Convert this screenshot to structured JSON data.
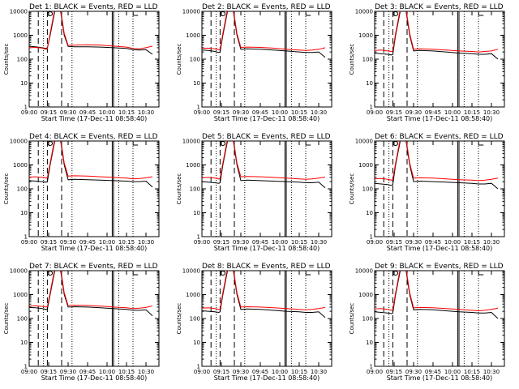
{
  "chart_data": [
    {
      "type": "line",
      "title": "Det 1: BLACK = Events, RED = LLD",
      "xlabel": "Start Time (17-Dec-11 08:58:40)",
      "ylabel": "Counts/sec",
      "x_ticks": [
        "09:00",
        "09:15",
        "09:30",
        "09:45",
        "10:00",
        "10:15",
        "10:30"
      ],
      "y_ticks": [
        "1",
        "10",
        "100",
        "1000",
        "10000"
      ],
      "yscale": "log",
      "ylim": [
        1,
        10000
      ],
      "x": [
        "09:00",
        "09:05",
        "09:10",
        "09:13",
        "09:14",
        "09:16",
        "09:20",
        "09:24",
        "09:27",
        "09:30",
        "09:35",
        "09:45",
        "09:55",
        "10:05",
        "10:15",
        "10:20",
        "10:25",
        "10:30",
        "10:35"
      ],
      "series": [
        {
          "name": "Events",
          "color": "#000000",
          "values": [
            340,
            330,
            300,
            280,
            300,
            900,
            12000,
            12000,
            1000,
            340,
            330,
            330,
            320,
            300,
            280,
            250,
            240,
            250,
            160
          ]
        },
        {
          "name": "LLD",
          "color": "#ff0000",
          "values": [
            300,
            310,
            290,
            260,
            270,
            1100,
            15000,
            15000,
            1200,
            380,
            390,
            400,
            390,
            350,
            320,
            280,
            270,
            300,
            350
          ]
        }
      ]
    },
    {
      "type": "line",
      "title": "Det 2: BLACK = Events, RED = LLD",
      "xlabel": "Start Time (17-Dec-11 08:58:40)",
      "ylabel": "Counts/sec",
      "x_ticks": [
        "09:00",
        "09:15",
        "09:30",
        "09:45",
        "10:00",
        "10:15",
        "10:30"
      ],
      "y_ticks": [
        "1",
        "10",
        "100",
        "1000",
        "10000"
      ],
      "yscale": "log",
      "ylim": [
        1,
        10000
      ],
      "x": [
        "09:00",
        "09:05",
        "09:10",
        "09:13",
        "09:14",
        "09:16",
        "09:20",
        "09:24",
        "09:27",
        "09:30",
        "09:35",
        "09:45",
        "09:55",
        "10:05",
        "10:15",
        "10:20",
        "10:25",
        "10:30",
        "10:35"
      ],
      "series": [
        {
          "name": "Events",
          "color": "#000000",
          "values": [
            240,
            230,
            210,
            190,
            200,
            900,
            12000,
            12000,
            1000,
            260,
            270,
            260,
            240,
            220,
            200,
            190,
            190,
            200,
            120
          ]
        },
        {
          "name": "LLD",
          "color": "#ff0000",
          "values": [
            280,
            290,
            270,
            250,
            260,
            1100,
            15000,
            15000,
            1200,
            310,
            320,
            310,
            290,
            260,
            240,
            230,
            240,
            260,
            300
          ]
        }
      ]
    },
    {
      "type": "line",
      "title": "Det 3: BLACK = Events, RED = LLD",
      "xlabel": "Start Time (17-Dec-11 08:58:40)",
      "ylabel": "Counts/sec",
      "x_ticks": [
        "09:00",
        "09:15",
        "09:30",
        "09:45",
        "10:00",
        "10:15",
        "10:30"
      ],
      "y_ticks": [
        "1",
        "10",
        "100",
        "1000",
        "10000"
      ],
      "yscale": "log",
      "ylim": [
        1,
        10000
      ],
      "x": [
        "09:00",
        "09:05",
        "09:10",
        "09:13",
        "09:14",
        "09:16",
        "09:20",
        "09:24",
        "09:27",
        "09:30",
        "09:35",
        "09:45",
        "09:55",
        "10:05",
        "10:15",
        "10:20",
        "10:25",
        "10:30",
        "10:35"
      ],
      "series": [
        {
          "name": "Events",
          "color": "#000000",
          "values": [
            180,
            170,
            160,
            150,
            160,
            900,
            12000,
            12000,
            1000,
            220,
            230,
            220,
            200,
            180,
            170,
            160,
            160,
            170,
            100
          ]
        },
        {
          "name": "LLD",
          "color": "#ff0000",
          "values": [
            230,
            240,
            220,
            210,
            220,
            1100,
            15000,
            15000,
            1200,
            260,
            270,
            260,
            240,
            220,
            210,
            200,
            210,
            220,
            260
          ]
        }
      ]
    },
    {
      "type": "line",
      "title": "Det 4: BLACK = Events, RED = LLD",
      "xlabel": "Start Time (17-Dec-11 08:58:40)",
      "ylabel": "Counts/sec",
      "x_ticks": [
        "09:00",
        "09:15",
        "09:30",
        "09:45",
        "10:00",
        "10:15",
        "10:30"
      ],
      "y_ticks": [
        "1",
        "10",
        "100",
        "1000",
        "10000"
      ],
      "yscale": "log",
      "ylim": [
        1,
        10000
      ],
      "x": [
        "09:00",
        "09:05",
        "09:10",
        "09:13",
        "09:14",
        "09:16",
        "09:20",
        "09:24",
        "09:27",
        "09:30",
        "09:35",
        "09:45",
        "09:55",
        "10:05",
        "10:15",
        "10:20",
        "10:25",
        "10:30",
        "10:35"
      ],
      "series": [
        {
          "name": "Events",
          "color": "#000000",
          "values": [
            220,
            210,
            200,
            190,
            200,
            900,
            12000,
            12000,
            1000,
            240,
            250,
            240,
            230,
            220,
            210,
            200,
            200,
            210,
            120
          ]
        },
        {
          "name": "LLD",
          "color": "#ff0000",
          "values": [
            310,
            320,
            300,
            280,
            290,
            1100,
            15000,
            15000,
            1200,
            340,
            350,
            340,
            320,
            300,
            280,
            260,
            270,
            290,
            320
          ]
        }
      ]
    },
    {
      "type": "line",
      "title": "Det 5: BLACK = Events, RED = LLD",
      "xlabel": "Start Time (17-Dec-11 08:58:40)",
      "ylabel": "Counts/sec",
      "x_ticks": [
        "09:00",
        "09:15",
        "09:30",
        "09:45",
        "10:00",
        "10:15",
        "10:30"
      ],
      "y_ticks": [
        "1",
        "10",
        "100",
        "1000",
        "10000"
      ],
      "yscale": "log",
      "ylim": [
        1,
        10000
      ],
      "x": [
        "09:00",
        "09:05",
        "09:10",
        "09:13",
        "09:14",
        "09:16",
        "09:20",
        "09:24",
        "09:27",
        "09:30",
        "09:35",
        "09:45",
        "09:55",
        "10:05",
        "10:15",
        "10:20",
        "10:25",
        "10:30",
        "10:35"
      ],
      "series": [
        {
          "name": "Events",
          "color": "#000000",
          "values": [
            200,
            190,
            180,
            170,
            180,
            900,
            12000,
            12000,
            1000,
            220,
            230,
            220,
            210,
            200,
            190,
            180,
            180,
            190,
            110
          ]
        },
        {
          "name": "LLD",
          "color": "#ff0000",
          "values": [
            290,
            300,
            280,
            260,
            270,
            1100,
            15000,
            15000,
            1200,
            320,
            330,
            320,
            300,
            280,
            260,
            250,
            260,
            280,
            310
          ]
        }
      ]
    },
    {
      "type": "line",
      "title": "Det 6: BLACK = Events, RED = LLD",
      "xlabel": "Start Time (17-Dec-11 08:58:40)",
      "ylabel": "Counts/sec",
      "x_ticks": [
        "09:00",
        "09:15",
        "09:30",
        "09:45",
        "10:00",
        "10:15",
        "10:30"
      ],
      "y_ticks": [
        "1",
        "10",
        "100",
        "1000",
        "10000"
      ],
      "yscale": "log",
      "ylim": [
        1,
        10000
      ],
      "x": [
        "09:00",
        "09:05",
        "09:10",
        "09:13",
        "09:14",
        "09:16",
        "09:20",
        "09:24",
        "09:27",
        "09:30",
        "09:35",
        "09:45",
        "09:55",
        "10:05",
        "10:15",
        "10:20",
        "10:25",
        "10:30",
        "10:35"
      ],
      "series": [
        {
          "name": "Events",
          "color": "#000000",
          "values": [
            170,
            160,
            150,
            140,
            150,
            900,
            12000,
            12000,
            1000,
            200,
            210,
            200,
            190,
            180,
            170,
            160,
            160,
            170,
            100
          ]
        },
        {
          "name": "LLD",
          "color": "#ff0000",
          "values": [
            260,
            270,
            250,
            230,
            240,
            1100,
            15000,
            15000,
            1200,
            280,
            290,
            280,
            260,
            240,
            230,
            220,
            230,
            250,
            280
          ]
        }
      ]
    },
    {
      "type": "line",
      "title": "Det 7: BLACK = Events, RED = LLD",
      "xlabel": "Start Time (17-Dec-11 08:58:40)",
      "ylabel": "Counts/sec",
      "x_ticks": [
        "09:00",
        "09:15",
        "09:30",
        "09:45",
        "10:00",
        "10:15",
        "10:30"
      ],
      "y_ticks": [
        "1",
        "10",
        "100",
        "1000",
        "10000"
      ],
      "yscale": "log",
      "ylim": [
        1,
        10000
      ],
      "x": [
        "09:00",
        "09:05",
        "09:10",
        "09:13",
        "09:14",
        "09:16",
        "09:20",
        "09:24",
        "09:27",
        "09:30",
        "09:35",
        "09:45",
        "09:55",
        "10:05",
        "10:15",
        "10:20",
        "10:25",
        "10:30",
        "10:35"
      ],
      "series": [
        {
          "name": "Events",
          "color": "#000000",
          "values": [
            290,
            280,
            260,
            240,
            250,
            900,
            12000,
            12000,
            1000,
            300,
            310,
            300,
            280,
            260,
            240,
            220,
            220,
            230,
            130
          ]
        },
        {
          "name": "LLD",
          "color": "#ff0000",
          "values": [
            330,
            340,
            320,
            300,
            310,
            1100,
            15000,
            15000,
            1200,
            350,
            360,
            350,
            330,
            300,
            280,
            260,
            270,
            290,
            340
          ]
        }
      ]
    },
    {
      "type": "line",
      "title": "Det 8: BLACK = Events, RED = LLD",
      "xlabel": "Start Time (17-Dec-11 08:58:40)",
      "ylabel": "Counts/sec",
      "x_ticks": [
        "09:00",
        "09:15",
        "09:30",
        "09:45",
        "10:00",
        "10:15",
        "10:30"
      ],
      "y_ticks": [
        "1",
        "10",
        "100",
        "1000",
        "10000"
      ],
      "yscale": "log",
      "ylim": [
        1,
        10000
      ],
      "x": [
        "09:00",
        "09:05",
        "09:10",
        "09:13",
        "09:14",
        "09:16",
        "09:20",
        "09:24",
        "09:27",
        "09:30",
        "09:35",
        "09:45",
        "09:55",
        "10:05",
        "10:15",
        "10:20",
        "10:25",
        "10:30",
        "10:35"
      ],
      "series": [
        {
          "name": "Events",
          "color": "#000000",
          "values": [
            210,
            200,
            190,
            180,
            190,
            900,
            12000,
            12000,
            1000,
            240,
            250,
            240,
            220,
            200,
            190,
            180,
            180,
            190,
            110
          ]
        },
        {
          "name": "LLD",
          "color": "#ff0000",
          "values": [
            270,
            280,
            260,
            240,
            250,
            1100,
            15000,
            15000,
            1200,
            300,
            310,
            300,
            280,
            260,
            240,
            230,
            240,
            260,
            290
          ]
        }
      ]
    },
    {
      "type": "line",
      "title": "Det 9: BLACK = Events, RED = LLD",
      "xlabel": "Start Time (17-Dec-11 08:58:40)",
      "ylabel": "Counts/sec",
      "x_ticks": [
        "09:00",
        "09:15",
        "09:30",
        "09:45",
        "10:00",
        "10:15",
        "10:30"
      ],
      "y_ticks": [
        "1",
        "10",
        "100",
        "1000",
        "10000"
      ],
      "yscale": "log",
      "ylim": [
        1,
        10000
      ],
      "x": [
        "09:00",
        "09:05",
        "09:10",
        "09:13",
        "09:14",
        "09:16",
        "09:20",
        "09:24",
        "09:27",
        "09:30",
        "09:35",
        "09:45",
        "09:55",
        "10:05",
        "10:15",
        "10:20",
        "10:25",
        "10:30",
        "10:35"
      ],
      "series": [
        {
          "name": "Events",
          "color": "#000000",
          "values": [
            190,
            180,
            170,
            160,
            170,
            900,
            12000,
            12000,
            1000,
            230,
            240,
            230,
            210,
            190,
            180,
            170,
            170,
            180,
            100
          ]
        },
        {
          "name": "LLD",
          "color": "#ff0000",
          "values": [
            250,
            260,
            240,
            220,
            230,
            1100,
            15000,
            15000,
            1200,
            280,
            290,
            280,
            260,
            240,
            220,
            210,
            220,
            240,
            270
          ]
        }
      ]
    }
  ],
  "reference_lines": {
    "dotted": [
      "09:11",
      "09:33",
      "10:09",
      "10:20"
    ],
    "dashed": [
      "09:07",
      "09:14",
      "09:25"
    ],
    "solid": [
      "10:04",
      "10:05"
    ]
  },
  "saa_markers": {
    "start": "09:16",
    "end": "10:22"
  },
  "grid": false,
  "legend": "none"
}
